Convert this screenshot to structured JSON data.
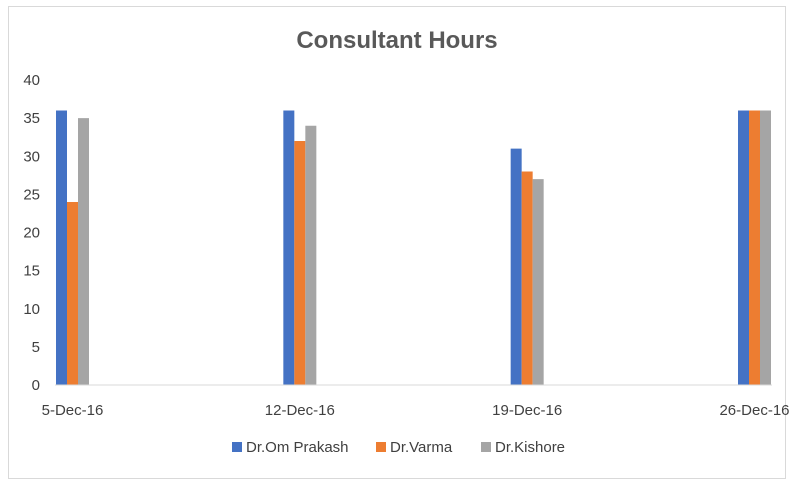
{
  "chart_data": {
    "type": "bar",
    "title": "Consultant Hours",
    "xlabel": "",
    "ylabel": "",
    "categories": [
      "5-Dec-16",
      "12-Dec-16",
      "19-Dec-16",
      "26-Dec-16"
    ],
    "series": [
      {
        "name": "Dr.Om Prakash",
        "color": "#4472c4",
        "values": [
          36,
          36,
          31,
          36
        ]
      },
      {
        "name": "Dr.Varma",
        "color": "#ed7d31",
        "values": [
          24,
          32,
          28,
          36
        ]
      },
      {
        "name": "Dr.Kishore",
        "color": "#a5a5a5",
        "values": [
          35,
          34,
          27,
          36
        ]
      }
    ],
    "ylim": [
      0,
      40
    ],
    "yticks": [
      0,
      5,
      10,
      15,
      20,
      25,
      30,
      35,
      40
    ],
    "grid": false,
    "legend_position": "bottom"
  }
}
